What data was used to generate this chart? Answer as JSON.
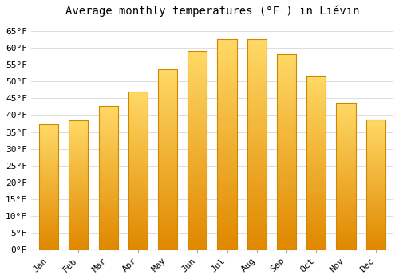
{
  "title": "Average monthly temperatures (°F ) in Liévin",
  "months": [
    "Jan",
    "Feb",
    "Mar",
    "Apr",
    "May",
    "Jun",
    "Jul",
    "Aug",
    "Sep",
    "Oct",
    "Nov",
    "Dec"
  ],
  "values": [
    37.2,
    38.5,
    42.8,
    47.0,
    53.6,
    59.2,
    62.6,
    62.6,
    58.3,
    51.8,
    43.7,
    38.8
  ],
  "bar_color_top": "#FFD966",
  "bar_color_bottom": "#F0A500",
  "bar_color_edge": "#CC8800",
  "ylim": [
    0,
    68
  ],
  "yticks": [
    0,
    5,
    10,
    15,
    20,
    25,
    30,
    35,
    40,
    45,
    50,
    55,
    60,
    65
  ],
  "background_color": "#FFFFFF",
  "plot_bg_color": "#FFFFFF",
  "grid_color": "#DDDDDD",
  "title_fontsize": 10,
  "tick_fontsize": 8,
  "font_family": "monospace"
}
